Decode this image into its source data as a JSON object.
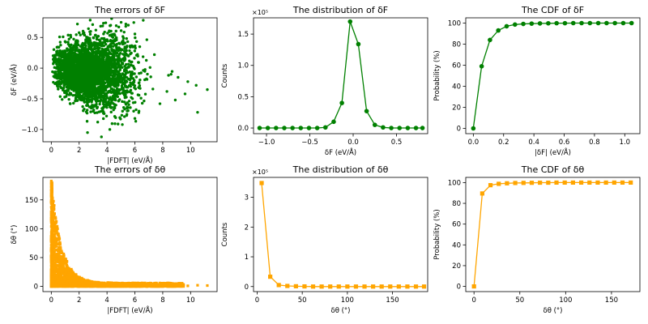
{
  "colors": {
    "green": "#008000",
    "orange": "#FFA500"
  },
  "chart_data": [
    {
      "type": "scatter",
      "title": "The errors of δF",
      "xlabel": "|FDFT| (eV/Å)",
      "ylabel": "δF (eV/Å)",
      "xlim": [
        -0.6,
        11.9
      ],
      "ylim": [
        -1.2,
        0.82
      ],
      "xticks": [
        0,
        2,
        4,
        6,
        8,
        10
      ],
      "yticks": [
        -1.0,
        -0.5,
        0.0,
        0.5
      ],
      "ytick_labels": [
        "−1.0",
        "−0.5",
        "0.0",
        "0.5"
      ],
      "color": "green",
      "marker": "circle",
      "outliers": [
        {
          "x": 10.4,
          "y": -0.28
        },
        {
          "x": 11.2,
          "y": -0.35
        },
        {
          "x": 10.5,
          "y": -0.72
        },
        {
          "x": 9.6,
          "y": -0.42
        },
        {
          "x": 8.9,
          "y": -0.52
        },
        {
          "x": 9.1,
          "y": -0.15
        },
        {
          "x": 8.3,
          "y": -0.38
        },
        {
          "x": 7.8,
          "y": -0.58
        },
        {
          "x": 6.6,
          "y": 0.78
        },
        {
          "x": 6.0,
          "y": -0.82
        },
        {
          "x": 5.1,
          "y": -0.92
        },
        {
          "x": 4.2,
          "y": -1.0
        },
        {
          "x": 3.6,
          "y": -1.12
        },
        {
          "x": 2.6,
          "y": -1.05
        },
        {
          "x": 7.4,
          "y": 0.22
        },
        {
          "x": 3.2,
          "y": 0.62
        },
        {
          "x": 9.8,
          "y": -0.22
        },
        {
          "x": 8.6,
          "y": -0.1
        }
      ]
    },
    {
      "type": "line",
      "title": "The distribution of δF",
      "xlabel": "δF (eV/Å)",
      "ylabel": "Counts",
      "scale_label": "×10⁵",
      "xlim": [
        -1.15,
        0.86
      ],
      "ylim": [
        -0.09,
        1.76
      ],
      "xticks": [
        -1.0,
        -0.5,
        0.0,
        0.5
      ],
      "xtick_labels": [
        "−1.0",
        "−0.5",
        "0.0",
        "0.5"
      ],
      "yticks": [
        0.0,
        0.5,
        1.0,
        1.5
      ],
      "ytick_labels": [
        "0.0",
        "0.5",
        "1.0",
        "1.5"
      ],
      "color": "green",
      "marker": "circle",
      "x": [
        -1.08,
        -0.985,
        -0.89,
        -0.795,
        -0.7,
        -0.605,
        -0.51,
        -0.415,
        -0.32,
        -0.225,
        -0.13,
        -0.035,
        0.06,
        0.155,
        0.25,
        0.345,
        0.44,
        0.535,
        0.63,
        0.725,
        0.8
      ],
      "values": [
        0,
        0,
        0,
        0,
        0,
        0,
        0,
        0,
        0.01,
        0.1,
        0.4,
        1.7,
        1.34,
        0.27,
        0.05,
        0.01,
        0,
        0,
        0,
        0,
        0
      ]
    },
    {
      "type": "line",
      "title": "The CDF of δF",
      "xlabel": "|δF| (eV/Å)",
      "ylabel": "Probability (%)",
      "xlim": [
        -0.05,
        1.1
      ],
      "ylim": [
        -5,
        105
      ],
      "xticks": [
        0.0,
        0.2,
        0.4,
        0.6,
        0.8,
        1.0
      ],
      "xtick_labels": [
        "0.0",
        "0.2",
        "0.4",
        "0.6",
        "0.8",
        "1.0"
      ],
      "yticks": [
        0,
        20,
        40,
        60,
        80,
        100
      ],
      "color": "green",
      "marker": "circle",
      "x": [
        0.0,
        0.055,
        0.11,
        0.165,
        0.22,
        0.275,
        0.33,
        0.385,
        0.44,
        0.495,
        0.55,
        0.605,
        0.66,
        0.715,
        0.77,
        0.825,
        0.88,
        0.935,
        0.99,
        1.045
      ],
      "values": [
        0,
        59,
        84,
        93,
        97,
        98.6,
        99.2,
        99.5,
        99.7,
        99.8,
        99.9,
        99.9,
        100,
        100,
        100,
        100,
        100,
        100,
        100,
        100
      ]
    },
    {
      "type": "scatter",
      "title": "The errors of δθ",
      "xlabel": "|FDFT| (eV/Å)",
      "ylabel": "δθ (°)",
      "xlim": [
        -0.6,
        11.9
      ],
      "ylim": [
        -9,
        189
      ],
      "xticks": [
        0,
        2,
        4,
        6,
        8,
        10
      ],
      "yticks": [
        0,
        50,
        100,
        150
      ],
      "color": "orange",
      "marker": "square",
      "outliers": [
        {
          "x": 11.2,
          "y": 1.5
        },
        {
          "x": 10.5,
          "y": 2
        },
        {
          "x": 9.8,
          "y": 1
        },
        {
          "x": 9.3,
          "y": 2.5
        },
        {
          "x": 8.7,
          "y": 3
        },
        {
          "x": 8.2,
          "y": 2
        }
      ]
    },
    {
      "type": "line",
      "title": "The distribution of δθ",
      "xlabel": "δθ (°)",
      "ylabel": "Counts",
      "scale_label": "×10⁵",
      "xlim": [
        -4,
        189
      ],
      "ylim": [
        -0.17,
        3.67
      ],
      "xticks": [
        0,
        50,
        100,
        150
      ],
      "yticks": [
        0,
        1,
        2,
        3
      ],
      "color": "orange",
      "marker": "square",
      "x": [
        5,
        14.5,
        24,
        33.5,
        43,
        52.5,
        62,
        71.5,
        81,
        90.5,
        100,
        109.5,
        119,
        128.5,
        138,
        147.5,
        157,
        166.5,
        176,
        185
      ],
      "values": [
        3.48,
        0.33,
        0.05,
        0.02,
        0.01,
        0.005,
        0,
        0,
        0,
        0,
        0,
        0,
        0,
        0,
        0,
        0,
        0,
        0,
        0,
        0
      ]
    },
    {
      "type": "line",
      "title": "The CDF of δθ",
      "xlabel": "δθ (°)",
      "ylabel": "Probability (%)",
      "xlim": [
        -9,
        181
      ],
      "ylim": [
        -5,
        105
      ],
      "xticks": [
        0,
        50,
        100,
        150
      ],
      "yticks": [
        0,
        20,
        40,
        60,
        80,
        100
      ],
      "color": "orange",
      "marker": "square",
      "x": [
        0,
        9,
        18,
        27,
        36,
        45,
        54,
        63,
        72,
        81,
        90,
        99,
        108,
        117,
        126,
        135,
        144,
        153,
        162,
        171
      ],
      "values": [
        0,
        89.5,
        97.5,
        98.8,
        99.3,
        99.6,
        99.7,
        99.8,
        99.9,
        99.9,
        100,
        100,
        100,
        100,
        100,
        100,
        100,
        100,
        100,
        100
      ]
    }
  ]
}
